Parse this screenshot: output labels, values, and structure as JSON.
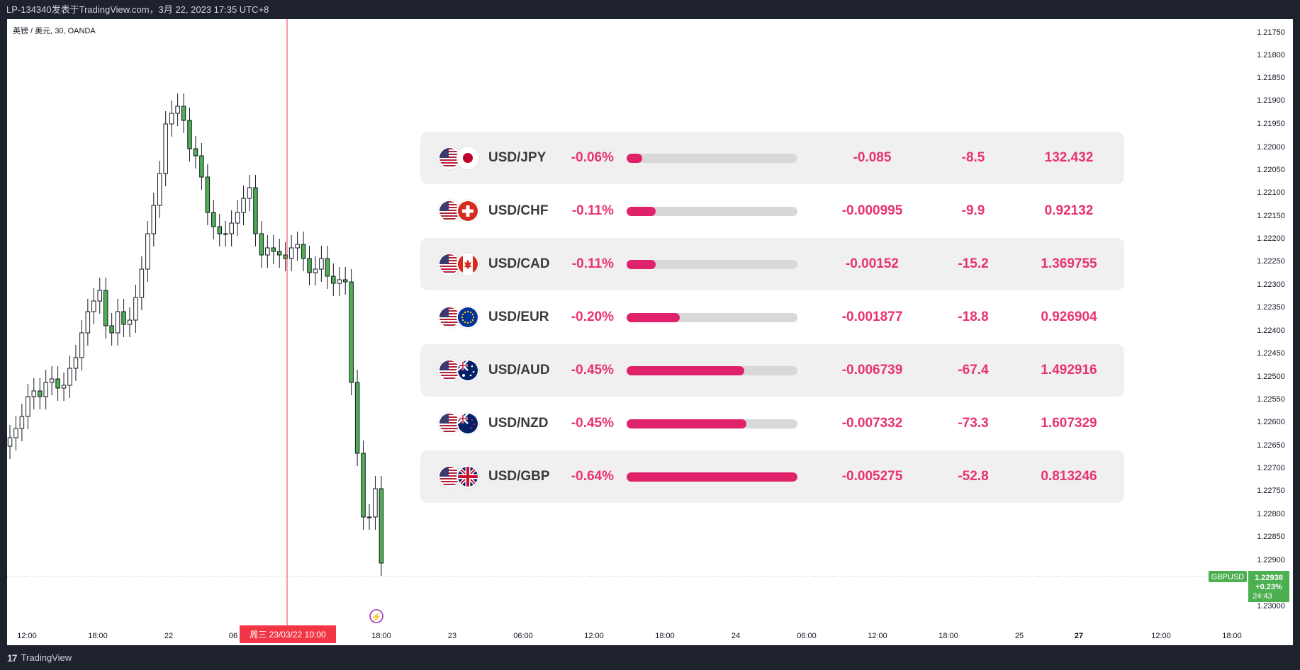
{
  "header": {
    "title": "LP-134340发表于TradingView.com，3月 22, 2023 17:35 UTC+8"
  },
  "chart": {
    "symbol_label": "英镑 / 美元, 30, OANDA",
    "y_ticks": [
      "1.21750",
      "1.21800",
      "1.21850",
      "1.21900",
      "1.21950",
      "1.22000",
      "1.22050",
      "1.22100",
      "1.22150",
      "1.22200",
      "1.22250",
      "1.22300",
      "1.22350",
      "1.22400",
      "1.22450",
      "1.22500",
      "1.22550",
      "1.22600",
      "1.22650",
      "1.22700",
      "1.22750",
      "1.22800",
      "1.22850",
      "1.22900",
      "1.23000"
    ],
    "x_ticks": [
      "12:00",
      "18:00",
      "22",
      "06",
      "18:00",
      "23",
      "06:00",
      "12:00",
      "18:00",
      "24",
      "06:00",
      "12:00",
      "18:00",
      "25",
      "27",
      "12:00",
      "18:00"
    ],
    "crosshair_label": "周三 23/03/22   10:00",
    "price_tag": {
      "symbol": "GBPUSD",
      "price": "1.22938",
      "change": "+0.23%",
      "countdown": "24:43"
    },
    "colors": {
      "up": "#4caf50",
      "crosshair": "#f23645",
      "tag": "#4caf50"
    }
  },
  "panel": {
    "rows": [
      {
        "pair": "USD/JPY",
        "pct": "-0.06%",
        "fill": 0.09,
        "change": "-0.085",
        "pips": "-8.5",
        "price": "132.432",
        "flag": "jp",
        "shaded": true
      },
      {
        "pair": "USD/CHF",
        "pct": "-0.11%",
        "fill": 0.17,
        "change": "-0.000995",
        "pips": "-9.9",
        "price": "0.92132",
        "flag": "ch",
        "shaded": false
      },
      {
        "pair": "USD/CAD",
        "pct": "-0.11%",
        "fill": 0.17,
        "change": "-0.00152",
        "pips": "-15.2",
        "price": "1.369755",
        "flag": "ca",
        "shaded": true
      },
      {
        "pair": "USD/EUR",
        "pct": "-0.20%",
        "fill": 0.31,
        "change": "-0.001877",
        "pips": "-18.8",
        "price": "0.926904",
        "flag": "eu",
        "shaded": false
      },
      {
        "pair": "USD/AUD",
        "pct": "-0.45%",
        "fill": 0.69,
        "change": "-0.006739",
        "pips": "-67.4",
        "price": "1.492916",
        "flag": "au",
        "shaded": true
      },
      {
        "pair": "USD/NZD",
        "pct": "-0.45%",
        "fill": 0.7,
        "change": "-0.007332",
        "pips": "-73.3",
        "price": "1.607329",
        "flag": "nz",
        "shaded": false
      },
      {
        "pair": "USD/GBP",
        "pct": "-0.64%",
        "fill": 1.0,
        "change": "-0.005275",
        "pips": "-52.8",
        "price": "0.813246",
        "flag": "gb",
        "shaded": true
      }
    ]
  },
  "footer": {
    "brand": "TradingView",
    "logo_text": "17"
  }
}
